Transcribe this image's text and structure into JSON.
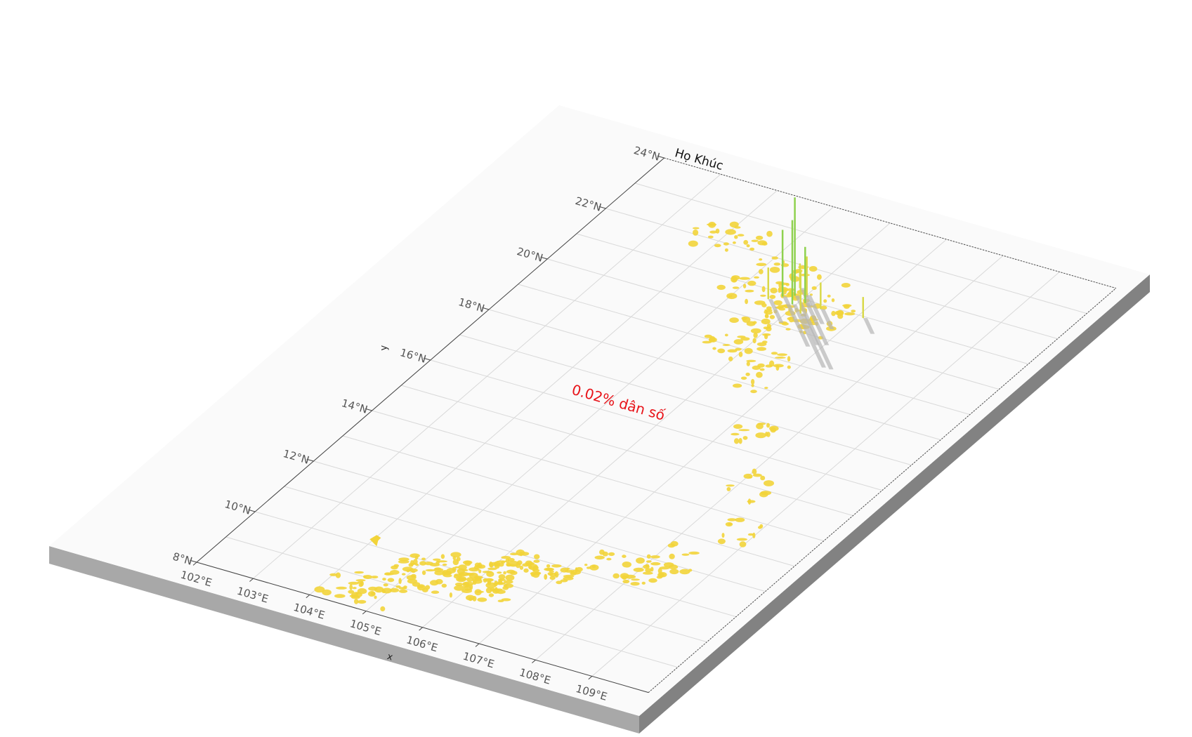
{
  "map": {
    "title": "Họ Khúc",
    "annotation": "0.02% dân số",
    "annotation_color": "#e8141a",
    "x_axis_label": "x",
    "y_axis_label": "y",
    "lon_range": [
      102,
      110
    ],
    "lat_range": [
      8,
      24
    ],
    "lon_ticks": [
      "102°E",
      "103°E",
      "104°E",
      "105°E",
      "106°E",
      "107°E",
      "108°E",
      "109°E"
    ],
    "lat_ticks": [
      "8°N",
      "10°N",
      "12°N",
      "14°N",
      "16°N",
      "18°N",
      "20°N",
      "22°N",
      "24°N"
    ],
    "colors": {
      "plate_top": "#fafafa",
      "plate_front": "#a8a8a8",
      "plate_side": "#828282",
      "gridline": "#d9d9d9",
      "axis": "#444444",
      "region_fill": "#f2d43a",
      "bar_high": "#8fd14f",
      "bar_low": "#d9d94a",
      "shadow": "#b5b5b5"
    }
  }
}
